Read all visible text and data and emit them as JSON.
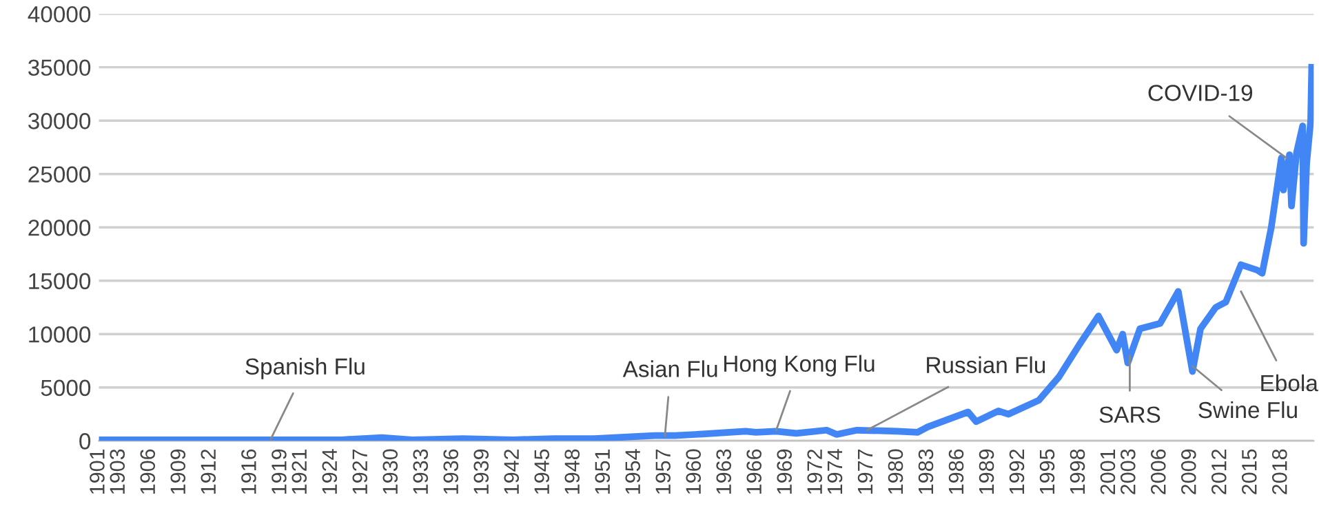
{
  "chart_data": {
    "type": "line",
    "x": [
      1901,
      1910,
      1915,
      1919,
      1925,
      1929,
      1932,
      1937,
      1942,
      1946,
      1950,
      1954,
      1956,
      1958,
      1960,
      1965,
      1966,
      1968,
      1970,
      1973,
      1974,
      1976,
      1980,
      1982,
      1983,
      1987,
      1987.8,
      1990,
      1991,
      1994,
      1996,
      1998,
      1999.9,
      2001.7,
      2002.3,
      2002.8,
      2004,
      2006,
      2007.8,
      2009.2,
      2010,
      2011.5,
      2012.5,
      2014,
      2015.6,
      2016.1,
      2017,
      2018.0,
      2018.2,
      2018.8,
      2019.0,
      2019.5,
      2020.1,
      2020.2,
      2020.5,
      2020.9,
      2021.0
    ],
    "series": [
      {
        "color": "#4285f4",
        "values": [
          100,
          100,
          100,
          100,
          100,
          300,
          100,
          200,
          100,
          200,
          200,
          400,
          500,
          500,
          600,
          900,
          800,
          900,
          700,
          1000,
          600,
          1000,
          900,
          800,
          1300,
          2700,
          1800,
          2800,
          2500,
          3800,
          6000,
          9000,
          11700,
          8500,
          10000,
          7300,
          10500,
          11000,
          14000,
          6500,
          10500,
          12500,
          13000,
          16500,
          16000,
          15700,
          20000,
          26500,
          23500,
          26800,
          22000,
          27000,
          29500,
          18500,
          26000,
          30000,
          35000
        ]
      }
    ],
    "xlim": [
      1901,
      2021.2
    ],
    "xticks": [
      1901,
      1903,
      1906,
      1909,
      1912,
      1916,
      1919,
      1921,
      1924,
      1927,
      1930,
      1933,
      1936,
      1939,
      1942,
      1945,
      1948,
      1951,
      1954,
      1957,
      1960,
      1963,
      1966,
      1969,
      1972,
      1974,
      1977,
      1980,
      1983,
      1986,
      1989,
      1992,
      1995,
      1998,
      2001,
      2003,
      2006,
      2009,
      2012,
      2015,
      2018
    ],
    "ylim": [
      0,
      40000
    ],
    "yticks": [
      0,
      5000,
      10000,
      15000,
      20000,
      25000,
      30000,
      35000,
      40000
    ],
    "grid": "y",
    "annotations": [
      {
        "text": "Spanish Flu",
        "x": 1918,
        "y": 150
      },
      {
        "text": "Asian Flu",
        "x": 1957,
        "y": 450
      },
      {
        "text": "Hong Kong Flu",
        "x": 1968,
        "y": 950
      },
      {
        "text": "Russian Flu",
        "x": 1977,
        "y": 1000
      },
      {
        "text": "SARS",
        "x": 2003,
        "y": 8000
      },
      {
        "text": "Swine Flu",
        "x": 2009.2,
        "y": 7000
      },
      {
        "text": "Ebola",
        "x": 2014,
        "y": 14000
      },
      {
        "text": "COVID-19",
        "x": 2018.5,
        "y": 26500
      }
    ]
  }
}
